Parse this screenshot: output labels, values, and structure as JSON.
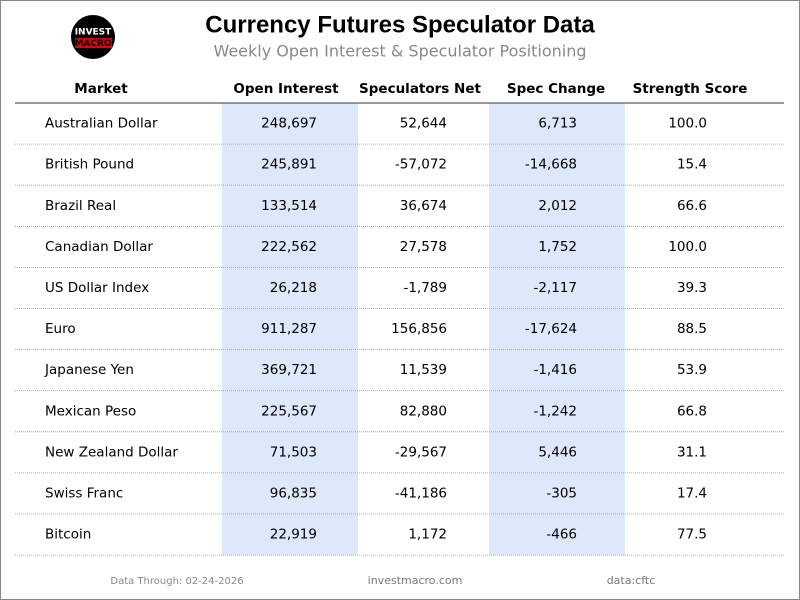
{
  "logo": {
    "top": "INVEST",
    "bottom": "MACRO"
  },
  "header": {
    "title": "Currency Futures Speculator Data",
    "subtitle": "Weekly Open Interest & Speculator Positioning"
  },
  "table": {
    "columns": [
      "Market",
      "Open Interest",
      "Speculators Net",
      "Spec Change",
      "Strength Score"
    ],
    "rows": [
      [
        "Australian Dollar",
        "248,697",
        "52,644",
        "6,713",
        "100.0"
      ],
      [
        "British Pound",
        "245,891",
        "-57,072",
        "-14,668",
        "15.4"
      ],
      [
        "Brazil Real",
        "133,514",
        "36,674",
        "2,012",
        "66.6"
      ],
      [
        "Canadian Dollar",
        "222,562",
        "27,578",
        "1,752",
        "100.0"
      ],
      [
        "US Dollar Index",
        "26,218",
        "-1,789",
        "-2,117",
        "39.3"
      ],
      [
        "Euro",
        "911,287",
        "156,856",
        "-17,624",
        "88.5"
      ],
      [
        "Japanese Yen",
        "369,721",
        "11,539",
        "-1,416",
        "53.9"
      ],
      [
        "Mexican Peso",
        "225,567",
        "82,880",
        "-1,242",
        "66.8"
      ],
      [
        "New Zealand Dollar",
        "71,503",
        "-29,567",
        "5,446",
        "31.1"
      ],
      [
        "Swiss Franc",
        "96,835",
        "-41,186",
        "-305",
        "17.4"
      ],
      [
        "Bitcoin",
        "22,919",
        "1,172",
        "-466",
        "77.5"
      ]
    ]
  },
  "footer": {
    "date": "Data Through: 02-24-2026",
    "site": "investmacro.com",
    "source": "data:cftc"
  }
}
